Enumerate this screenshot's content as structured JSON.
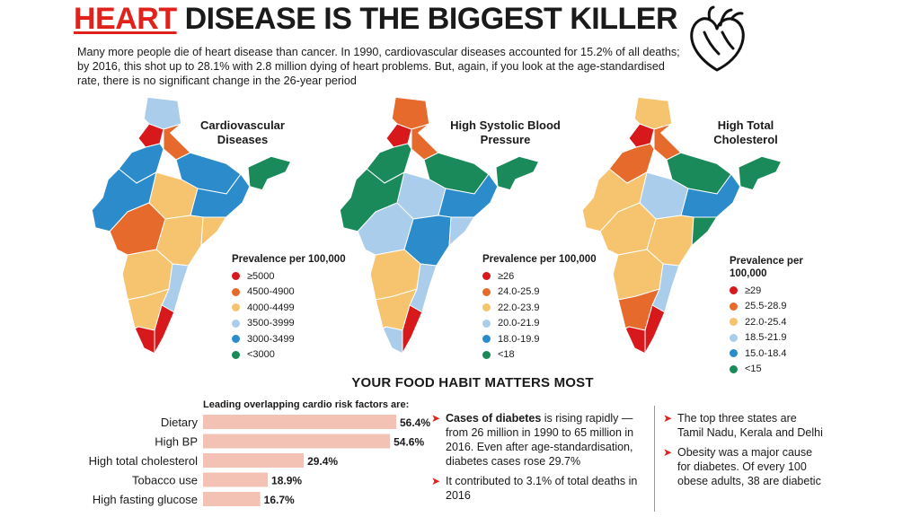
{
  "header": {
    "title_highlight": "HEART",
    "title_rest": "DISEASE IS THE BIGGEST KILLER",
    "intro": "Many more people die of heart disease than cancer. In 1990, cardiovascular diseases accounted for 15.2% of all deaths; by 2016, this shot up to 28.1% with 2.8 million dying of heart problems. But, again, if you look at the age-standardised rate, there is no significant change in the 26-year period",
    "icon": "heart-outline-icon"
  },
  "maps": [
    {
      "title_line1": "Cardiovascular",
      "title_line2": "Diseases",
      "legend_title_line1": "Prevalence per 100,000",
      "legend_title_line2": "",
      "legend": [
        {
          "label": "≥5000",
          "color": "#d7191c"
        },
        {
          "label": "4500-4900",
          "color": "#e66a2c"
        },
        {
          "label": "4000-4499",
          "color": "#f6c46e"
        },
        {
          "label": "3500-3999",
          "color": "#a9cdea"
        },
        {
          "label": "3000-3499",
          "color": "#2c8ccb"
        },
        {
          "label": "<3000",
          "color": "#1a8a5a"
        }
      ]
    },
    {
      "title_line1": "High Systolic Blood",
      "title_line2": "Pressure",
      "legend_title_line1": "Prevalence per 100,000",
      "legend_title_line2": "",
      "legend": [
        {
          "label": "≥26",
          "color": "#d7191c"
        },
        {
          "label": "24.0-25.9",
          "color": "#e66a2c"
        },
        {
          "label": "22.0-23.9",
          "color": "#f6c46e"
        },
        {
          "label": "20.0-21.9",
          "color": "#a9cdea"
        },
        {
          "label": "18.0-19.9",
          "color": "#2c8ccb"
        },
        {
          "label": "<18",
          "color": "#1a8a5a"
        }
      ]
    },
    {
      "title_line1": "High Total",
      "title_line2": "Cholesterol",
      "legend_title_line1": "Prevalence per",
      "legend_title_line2": "100,000",
      "legend": [
        {
          "label": "≥29",
          "color": "#d7191c"
        },
        {
          "label": "25.5-28.9",
          "color": "#e66a2c"
        },
        {
          "label": "22.0-25.4",
          "color": "#f6c46e"
        },
        {
          "label": "18.5-21.9",
          "color": "#a9cdea"
        },
        {
          "label": "15.0-18.4",
          "color": "#2c8ccb"
        },
        {
          "label": "<15",
          "color": "#1a8a5a"
        }
      ]
    }
  ],
  "food": {
    "heading": "YOUR FOOD HABIT MATTERS MOST"
  },
  "chart_data": {
    "type": "bar",
    "orientation": "horizontal",
    "title": "Leading overlapping cardio risk factors are:",
    "categories": [
      "Dietary",
      "High BP",
      "High total cholesterol",
      "Tobacco use",
      "High fasting glucose"
    ],
    "values": [
      56.4,
      54.6,
      29.4,
      18.9,
      16.7
    ],
    "value_labels": [
      "56.4%",
      "54.6%",
      "29.4%",
      "18.9%",
      "16.7%"
    ],
    "unit": "%",
    "bar_color": "#f4c2b4",
    "xlim": [
      0,
      60
    ]
  },
  "notes_left": {
    "n1_bold": "Cases of diabetes",
    "n1_rest": " is rising rapidly — from 26 million in 1990 to 65 million in 2016. Even after age-standardisation, diabetes cases rose 29.7%",
    "n2": "It contributed to 3.1% of total deaths in 2016"
  },
  "notes_right": {
    "n1": "The top three states are Tamil Nadu, Kerala and Delhi",
    "n2": "Obesity was a major cause for diabetes. Of every 100 obese adults, 38 are diabetic"
  },
  "colors": {
    "accent": "#e0221b"
  }
}
